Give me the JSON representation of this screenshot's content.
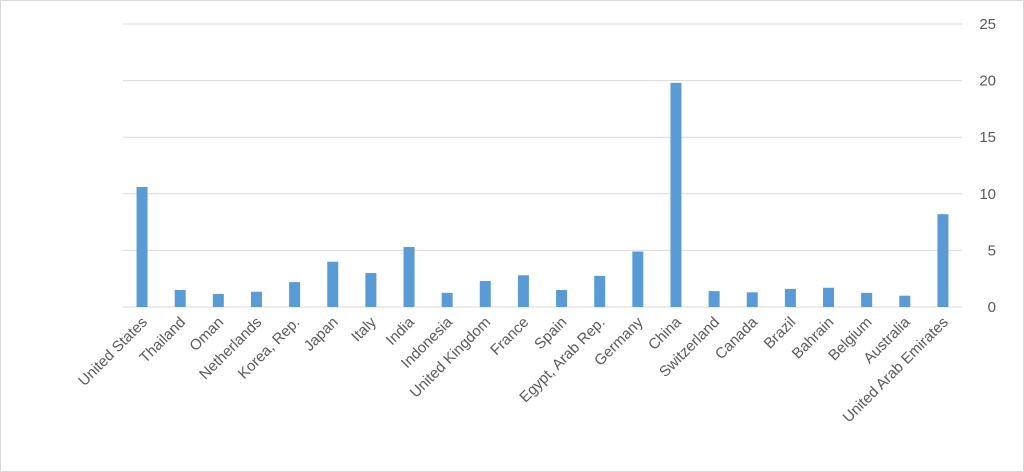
{
  "chart_data": {
    "type": "bar",
    "categories": [
      "United States",
      "Thailand",
      "Oman",
      "Netherlands",
      "Korea, Rep.",
      "Japan",
      "Italy",
      "India",
      "Indonesia",
      "United Kingdom",
      "France",
      "Spain",
      "Egypt, Arab Rep.",
      "Germany",
      "China",
      "Switzerland",
      "Canada",
      "Brazil",
      "Bahrain",
      "Belgium",
      "Australia",
      "United Arab Emirates"
    ],
    "values": [
      10.6,
      1.5,
      1.15,
      1.35,
      2.2,
      4.0,
      3.0,
      5.3,
      1.25,
      2.3,
      2.8,
      1.5,
      2.75,
      4.9,
      19.8,
      1.4,
      1.3,
      1.6,
      1.7,
      1.25,
      1.0,
      8.2
    ],
    "color": "#5b9bd5",
    "ylim": [
      0,
      25
    ],
    "yticks": [
      0,
      5,
      10,
      15,
      20,
      25
    ],
    "grid": true,
    "y_axis_side": "right"
  }
}
